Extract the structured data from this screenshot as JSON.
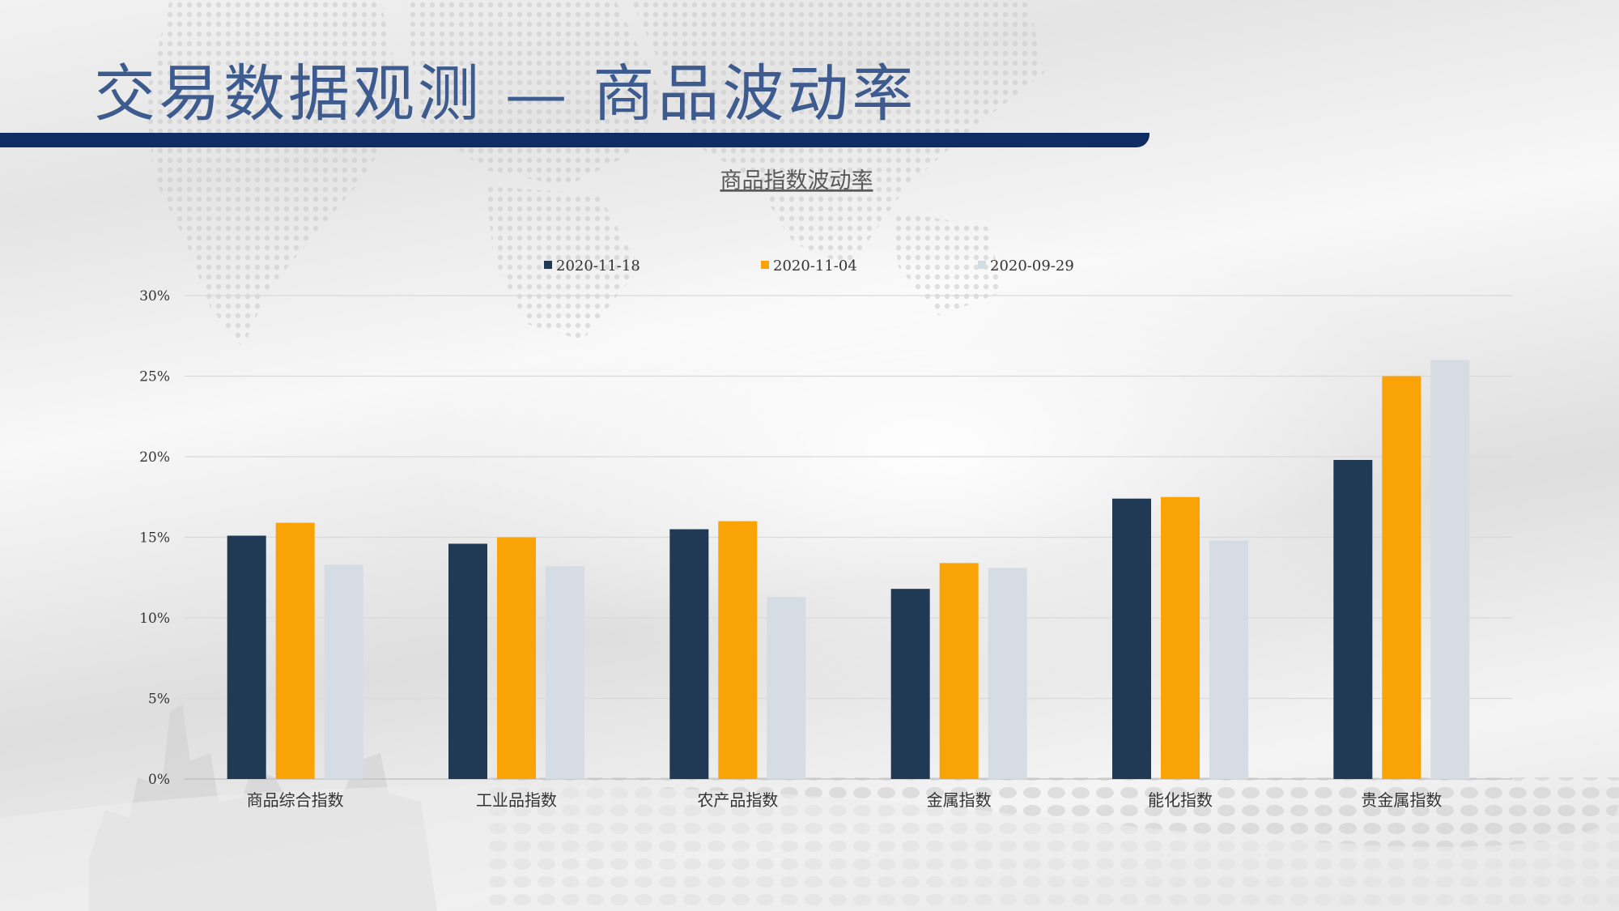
{
  "slide": {
    "title": "交易数据观测 — 商品波动率"
  },
  "colors": {
    "title_text": "#3d5b8e",
    "title_bar": "#0f2d62",
    "gridline": "#d9d9d9"
  },
  "chart_data": {
    "type": "bar",
    "title": "商品指数波动率",
    "categories": [
      "商品综合指数",
      "工业品指数",
      "农产品指数",
      "金属指数",
      "能化指数",
      "贵金属指数"
    ],
    "series": [
      {
        "name": "2020-11-18",
        "color": "#203a56",
        "values": [
          15.1,
          14.6,
          15.5,
          11.8,
          17.4,
          19.8
        ]
      },
      {
        "name": "2020-11-04",
        "color": "#faa307",
        "values": [
          15.9,
          15.0,
          16.0,
          13.4,
          17.5,
          25.0
        ]
      },
      {
        "name": "2020-09-29",
        "color": "#d6dce4",
        "values": [
          13.3,
          13.2,
          11.3,
          13.1,
          14.8,
          26.0
        ]
      }
    ],
    "y_ticks": [
      "0%",
      "5%",
      "10%",
      "15%",
      "20%",
      "25%",
      "30%"
    ],
    "ylim": [
      0,
      30
    ],
    "grid": true,
    "legend_position": "top"
  }
}
